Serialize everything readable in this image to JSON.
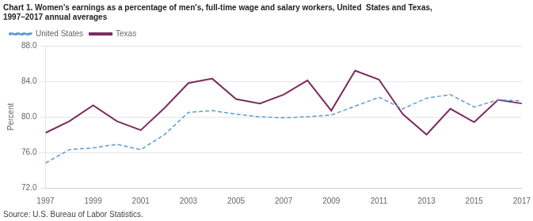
{
  "chart_data": {
    "type": "line",
    "title": [
      "Chart 1. Women's earnings as a percentage of men's, full-time wage and salary workers, United  States and Texas,",
      "1997–2017 annual averages"
    ],
    "ylabel": "Percent",
    "annotations": [
      "Source: U.S. Bureau of Labor Statistics."
    ],
    "x": [
      1997,
      1998,
      1999,
      2000,
      2001,
      2002,
      2003,
      2004,
      2005,
      2006,
      2007,
      2008,
      2009,
      2010,
      2011,
      2012,
      2013,
      2014,
      2015,
      2016,
      2017
    ],
    "series": [
      {
        "name": "United States",
        "color": "#5B9BD5",
        "line_style": "dashed",
        "values": [
          74.8,
          76.3,
          76.5,
          76.9,
          76.3,
          78.0,
          80.5,
          80.7,
          80.3,
          80.0,
          79.9,
          80.0,
          80.2,
          81.2,
          82.2,
          80.9,
          82.1,
          82.5,
          81.1,
          81.9,
          81.8
        ]
      },
      {
        "name": "Texas",
        "color": "#7B2D5E",
        "line_style": "solid",
        "values": [
          78.2,
          79.5,
          81.3,
          79.5,
          78.5,
          81.0,
          83.8,
          84.3,
          82.0,
          81.5,
          82.5,
          84.1,
          80.7,
          85.2,
          84.2,
          80.3,
          78.0,
          80.9,
          79.4,
          81.9,
          81.5
        ]
      }
    ],
    "xlim": [
      1997,
      2017
    ],
    "xticks": [
      1997,
      1999,
      2001,
      2003,
      2005,
      2007,
      2009,
      2011,
      2013,
      2015,
      2017
    ],
    "ylim": [
      72,
      88
    ],
    "yticks": [
      {
        "value": 72,
        "label": "72.0"
      },
      {
        "value": 76,
        "label": "76.0"
      },
      {
        "value": 80,
        "label": "80.0"
      },
      {
        "value": 84,
        "label": "84.0"
      },
      {
        "value": 88,
        "label": "88.0"
      }
    ],
    "grid": "y",
    "legend": "upper left"
  }
}
